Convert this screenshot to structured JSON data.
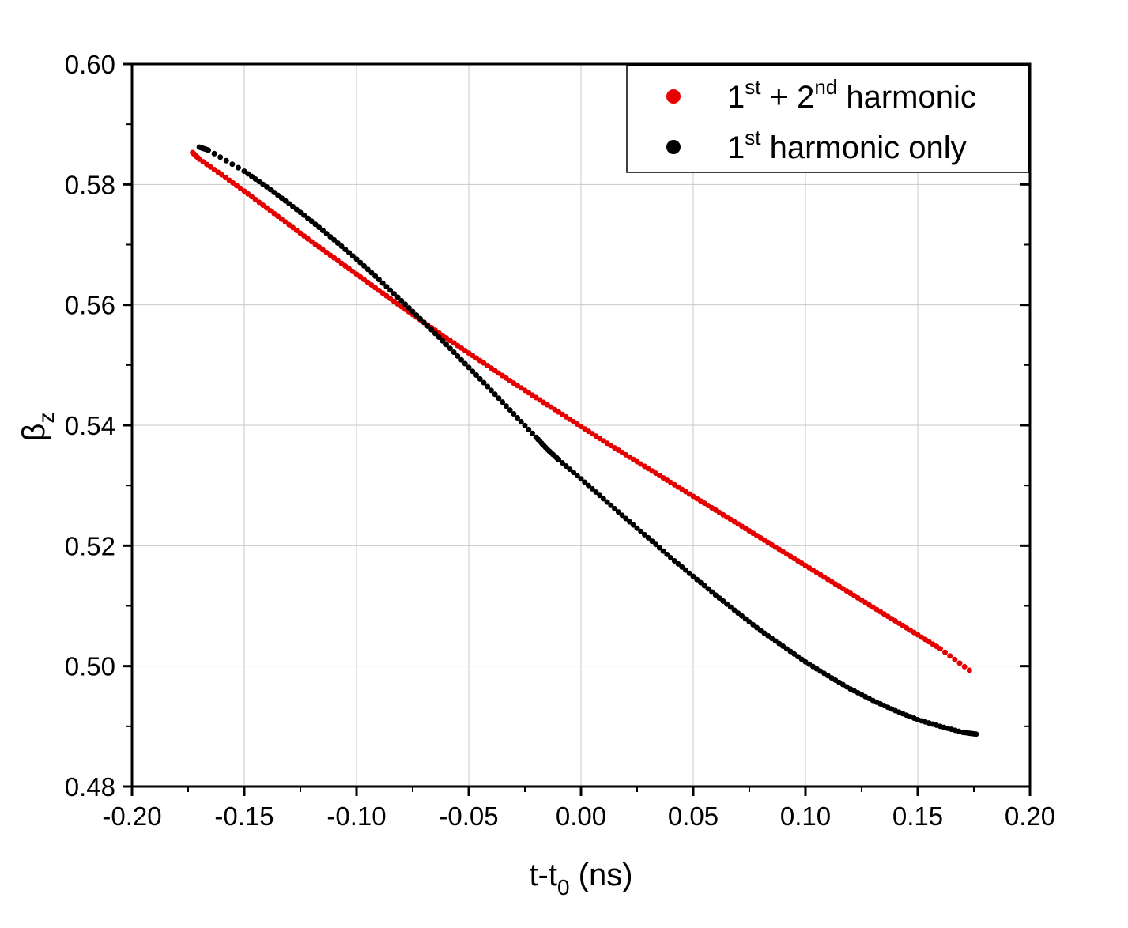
{
  "chart_data": {
    "type": "scatter",
    "xlabel": {
      "main": "t-t",
      "sub": "0",
      "rest": " (ns)"
    },
    "ylabel": {
      "main": "β",
      "sub": "z"
    },
    "xlim": [
      -0.2,
      0.2
    ],
    "ylim": [
      0.48,
      0.6
    ],
    "xticks": [
      "-0.20",
      "-0.15",
      "-0.10",
      "-0.05",
      "0.00",
      "0.05",
      "0.10",
      "0.15",
      "0.20"
    ],
    "yticks": [
      "0.48",
      "0.50",
      "0.52",
      "0.54",
      "0.56",
      "0.58",
      "0.60"
    ],
    "grid": true,
    "legend_position": "top-right",
    "series": [
      {
        "name": "1st + 2nd harmonic",
        "legend": {
          "n1": "1",
          "s1": "st",
          "mid": " + 2",
          "s2": "nd",
          "tail": " harmonic"
        },
        "color": "#e60000",
        "x": [
          -0.173,
          -0.17,
          -0.16,
          -0.15,
          -0.14,
          -0.13,
          -0.12,
          -0.11,
          -0.1,
          -0.09,
          -0.08,
          -0.07,
          -0.06,
          -0.05,
          -0.04,
          -0.03,
          -0.02,
          -0.01,
          0.0,
          0.01,
          0.02,
          0.03,
          0.04,
          0.05,
          0.06,
          0.07,
          0.08,
          0.09,
          0.1,
          0.11,
          0.12,
          0.13,
          0.14,
          0.15,
          0.16,
          0.173
        ],
        "y": [
          0.5853,
          0.5842,
          0.5816,
          0.5789,
          0.5761,
          0.5733,
          0.5705,
          0.5678,
          0.5651,
          0.5624,
          0.5597,
          0.5571,
          0.5545,
          0.552,
          0.5495,
          0.547,
          0.5446,
          0.5422,
          0.5398,
          0.5374,
          0.5351,
          0.5328,
          0.5305,
          0.5282,
          0.5259,
          0.5236,
          0.5213,
          0.519,
          0.5167,
          0.5144,
          0.5121,
          0.5098,
          0.5075,
          0.5052,
          0.5029,
          0.4993
        ]
      },
      {
        "name": "1st harmonic only",
        "legend": {
          "n1": "1",
          "s1": "st",
          "tail": " harmonic only"
        },
        "color": "#000000",
        "x": [
          -0.17,
          -0.166,
          -0.15,
          -0.14,
          -0.13,
          -0.12,
          -0.11,
          -0.1,
          -0.09,
          -0.08,
          -0.07,
          -0.06,
          -0.05,
          -0.04,
          -0.03,
          -0.02,
          -0.015,
          -0.01,
          0.0,
          0.01,
          0.02,
          0.03,
          0.04,
          0.05,
          0.06,
          0.07,
          0.08,
          0.09,
          0.1,
          0.11,
          0.12,
          0.13,
          0.14,
          0.15,
          0.16,
          0.17,
          0.176
        ],
        "y": [
          0.5862,
          0.5857,
          0.5822,
          0.5796,
          0.5768,
          0.5739,
          0.5708,
          0.5676,
          0.5642,
          0.5607,
          0.5571,
          0.5534,
          0.5496,
          0.5458,
          0.5419,
          0.538,
          0.536,
          0.5343,
          0.5311,
          0.5278,
          0.5245,
          0.5213,
          0.518,
          0.5149,
          0.5118,
          0.5088,
          0.5059,
          0.5033,
          0.5007,
          0.4984,
          0.4962,
          0.4943,
          0.4926,
          0.4911,
          0.49,
          0.489,
          0.4887
        ]
      }
    ]
  }
}
